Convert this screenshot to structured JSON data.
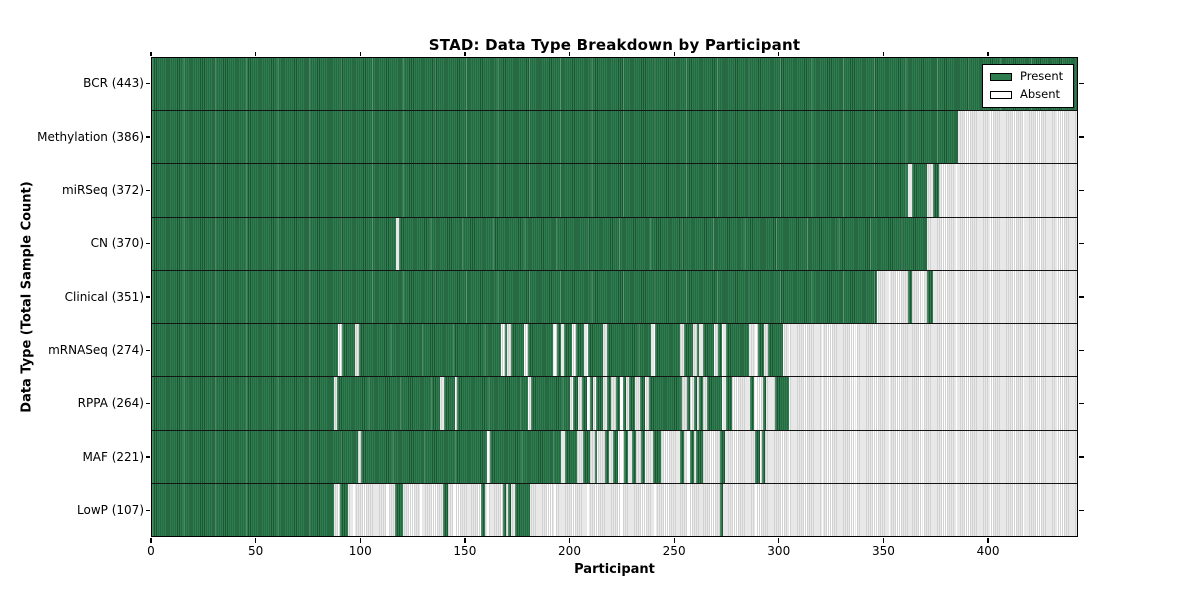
{
  "title": "STAD: Data Type Breakdown by Participant",
  "xlabel": "Participant",
  "ylabel": "Data Type (Total Sample Count)",
  "legend": {
    "present_label": "Present",
    "absent_label": "Absent"
  },
  "colors": {
    "present": "#2e7d4f",
    "present_edge": "#1e5634",
    "absent_fill": "#d2d2d2",
    "absent_edge": "#ffffff",
    "axis": "#000000",
    "background": "#ffffff"
  },
  "chart_data": {
    "type": "heatmap",
    "title": "STAD: Data Type Breakdown by Participant",
    "xlabel": "Participant",
    "ylabel": "Data Type (Total Sample Count)",
    "legend_entries": [
      "Present",
      "Absent"
    ],
    "legend_position": "upper right",
    "grid": false,
    "x_axis": {
      "min": 0,
      "max": 443,
      "ticks": [
        0,
        50,
        100,
        150,
        200,
        250,
        300,
        350,
        400
      ]
    },
    "value_encoding": {
      "present": "green filled bar",
      "absent": "light gray bar"
    },
    "rows": [
      {
        "name": "BCR",
        "label": "BCR (443)",
        "count": 443,
        "present_ranges": [
          [
            0,
            443
          ]
        ]
      },
      {
        "name": "Methylation",
        "label": "Methylation (386)",
        "count": 386,
        "present_ranges": [
          [
            0,
            386
          ]
        ]
      },
      {
        "name": "miRSeq",
        "label": "miRSeq (372)",
        "count": 372,
        "present_ranges": [
          [
            0,
            362
          ],
          [
            364,
            371
          ],
          [
            374,
            377
          ]
        ]
      },
      {
        "name": "CN",
        "label": "CN (370)",
        "count": 370,
        "present_ranges": [
          [
            0,
            117
          ],
          [
            118.5,
            371
          ]
        ]
      },
      {
        "name": "Clinical",
        "label": "Clinical (351)",
        "count": 351,
        "present_ranges": [
          [
            0,
            347
          ],
          [
            362,
            364
          ],
          [
            371,
            374
          ]
        ]
      },
      {
        "name": "mRNASeq",
        "label": "mRNASeq (274)",
        "count": 274,
        "present_ranges": [
          [
            0,
            89
          ],
          [
            91,
            97
          ],
          [
            99,
            167
          ],
          [
            169,
            170
          ],
          [
            172,
            178
          ],
          [
            180,
            192
          ],
          [
            194,
            196
          ],
          [
            197.5,
            201
          ],
          [
            203,
            207
          ],
          [
            209,
            216
          ],
          [
            218,
            239
          ],
          [
            241,
            253
          ],
          [
            255,
            259
          ],
          [
            261,
            262
          ],
          [
            264,
            269
          ],
          [
            271,
            273
          ],
          [
            275,
            286
          ],
          [
            290,
            293
          ],
          [
            295,
            302
          ]
        ]
      },
      {
        "name": "RPPA",
        "label": "RPPA (264)",
        "count": 264,
        "present_ranges": [
          [
            0,
            87
          ],
          [
            88.5,
            138
          ],
          [
            140,
            145
          ],
          [
            146,
            180
          ],
          [
            181.5,
            200
          ],
          [
            201.5,
            204
          ],
          [
            206,
            208.5
          ],
          [
            210,
            211
          ],
          [
            212.5,
            216
          ],
          [
            218,
            220
          ],
          [
            222,
            224
          ],
          [
            225.5,
            227
          ],
          [
            228.5,
            231.5
          ],
          [
            233.5,
            236
          ],
          [
            238,
            254
          ],
          [
            256,
            257.5
          ],
          [
            259.5,
            261
          ],
          [
            262,
            264
          ],
          [
            266,
            273
          ],
          [
            275,
            278
          ],
          [
            286.5,
            288.5
          ],
          [
            292.5,
            294
          ],
          [
            298.5,
            305
          ]
        ]
      },
      {
        "name": "MAF",
        "label": "MAF (221)",
        "count": 221,
        "present_ranges": [
          [
            0,
            98.5
          ],
          [
            100,
            160.5
          ],
          [
            162,
            196
          ],
          [
            198,
            203.5
          ],
          [
            206.5,
            210
          ],
          [
            212,
            213
          ],
          [
            217,
            219
          ],
          [
            221,
            223
          ],
          [
            226,
            228
          ],
          [
            230,
            232
          ],
          [
            234,
            236
          ],
          [
            240,
            244
          ],
          [
            253,
            255
          ],
          [
            257.5,
            259.5
          ],
          [
            260.5,
            264
          ],
          [
            272,
            274.5
          ],
          [
            289,
            291
          ],
          [
            292,
            293.5
          ]
        ]
      },
      {
        "name": "LowP",
        "label": "LowP (107)",
        "count": 107,
        "present_ranges": [
          [
            0,
            87
          ],
          [
            90,
            94
          ],
          [
            116.5,
            120
          ],
          [
            139.5,
            142
          ],
          [
            157.5,
            159.5
          ],
          [
            168,
            169.5
          ],
          [
            170.5,
            172
          ],
          [
            174,
            181
          ],
          [
            272,
            273.5
          ]
        ]
      }
    ]
  }
}
